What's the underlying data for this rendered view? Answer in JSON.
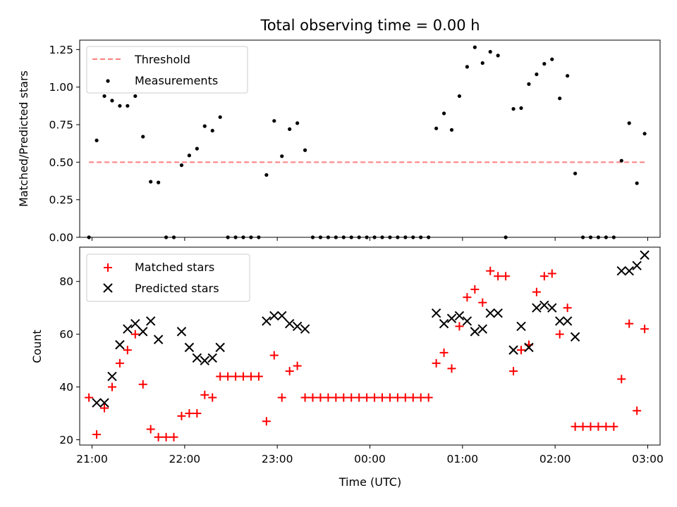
{
  "chart_data": [
    {
      "type": "scatter",
      "title": "Total observing time = 0.00 h",
      "ylabel": "Matched/Predicted stars",
      "xlim": [
        "20:52",
        "03:08"
      ],
      "ylim": [
        0,
        1.3125
      ],
      "yticks": [
        "0.00",
        "0.25",
        "0.50",
        "0.75",
        "1.00",
        "1.25"
      ],
      "threshold": {
        "name": "Threshold",
        "value": 0.5,
        "x_range": [
          "20:58",
          "02:58"
        ],
        "color": "#ff7f7f",
        "style": "dashed"
      },
      "legend": [
        "Threshold",
        "Measurements"
      ],
      "legend_position": "upper left",
      "series": [
        {
          "name": "Measurements",
          "color": "#000000",
          "x": [
            "20:58",
            "21:03",
            "21:08",
            "21:13",
            "21:18",
            "21:23",
            "21:28",
            "21:33",
            "21:38",
            "21:43",
            "21:48",
            "21:53",
            "21:58",
            "22:03",
            "22:08",
            "22:13",
            "22:18",
            "22:23",
            "22:28",
            "22:33",
            "22:38",
            "22:43",
            "22:48",
            "22:53",
            "22:58",
            "23:03",
            "23:08",
            "23:13",
            "23:18",
            "23:23",
            "23:28",
            "23:33",
            "23:38",
            "23:43",
            "23:48",
            "23:53",
            "23:58",
            "00:03",
            "00:08",
            "00:13",
            "00:18",
            "00:23",
            "00:28",
            "00:33",
            "00:38",
            "00:43",
            "00:48",
            "00:53",
            "00:58",
            "01:03",
            "01:08",
            "01:13",
            "01:18",
            "01:23",
            "01:28",
            "01:33",
            "01:38",
            "01:43",
            "01:48",
            "01:53",
            "01:58",
            "02:03",
            "02:08",
            "02:13",
            "02:18",
            "02:23",
            "02:28",
            "02:33",
            "02:38",
            "02:43",
            "02:48",
            "02:53",
            "02:58"
          ],
          "y": [
            0.0,
            0.645,
            0.94,
            0.91,
            0.875,
            0.875,
            0.94,
            0.67,
            0.37,
            0.365,
            0.0,
            0.0,
            0.48,
            0.545,
            0.59,
            0.74,
            0.71,
            0.8,
            0.0,
            0.0,
            0.0,
            0.0,
            0.0,
            0.415,
            0.775,
            0.54,
            0.72,
            0.76,
            0.58,
            0.0,
            0.0,
            0.0,
            0.0,
            0.0,
            0.0,
            0.0,
            0.0,
            0.0,
            0.0,
            0.0,
            0.0,
            0.0,
            0.0,
            0.0,
            0.0,
            0.725,
            0.825,
            0.715,
            0.94,
            1.135,
            1.265,
            1.16,
            1.235,
            1.21,
            0.0,
            0.855,
            0.86,
            1.02,
            1.085,
            1.155,
            1.185,
            0.925,
            1.075,
            0.425,
            0.0,
            0.0,
            0.0,
            0.0,
            0.0,
            0.51,
            0.76,
            0.36,
            0.69
          ]
        }
      ]
    },
    {
      "type": "scatter",
      "xlabel": "Time (UTC)",
      "ylabel": "Count",
      "xlim": [
        "20:52",
        "03:08"
      ],
      "ylim": [
        18,
        93
      ],
      "xticks": [
        "21:00",
        "22:00",
        "23:00",
        "00:00",
        "01:00",
        "02:00",
        "03:00"
      ],
      "yticks": [
        "20",
        "40",
        "60",
        "80"
      ],
      "legend": [
        "Matched stars",
        "Predicted stars"
      ],
      "legend_position": "upper left",
      "series": [
        {
          "name": "Matched stars",
          "color": "#ff0000",
          "marker": "+",
          "x": [
            "20:58",
            "21:03",
            "21:08",
            "21:13",
            "21:18",
            "21:23",
            "21:28",
            "21:33",
            "21:38",
            "21:43",
            "21:48",
            "21:53",
            "21:58",
            "22:03",
            "22:08",
            "22:13",
            "22:18",
            "22:23",
            "22:28",
            "22:33",
            "22:38",
            "22:43",
            "22:48",
            "22:53",
            "22:58",
            "23:03",
            "23:08",
            "23:13",
            "23:18",
            "23:23",
            "23:28",
            "23:33",
            "23:38",
            "23:43",
            "23:48",
            "23:53",
            "23:58",
            "00:03",
            "00:08",
            "00:13",
            "00:18",
            "00:23",
            "00:28",
            "00:33",
            "00:38",
            "00:43",
            "00:48",
            "00:53",
            "00:58",
            "01:03",
            "01:08",
            "01:13",
            "01:18",
            "01:23",
            "01:28",
            "01:33",
            "01:38",
            "01:43",
            "01:48",
            "01:53",
            "01:58",
            "02:03",
            "02:08",
            "02:13",
            "02:18",
            "02:23",
            "02:28",
            "02:33",
            "02:38",
            "02:43",
            "02:48",
            "02:53",
            "02:58"
          ],
          "y": [
            36,
            22,
            32,
            40,
            49,
            54,
            60,
            41,
            24,
            21,
            21,
            21,
            29,
            30,
            30,
            37,
            36,
            44,
            44,
            44,
            44,
            44,
            44,
            27,
            52,
            36,
            46,
            48,
            36,
            36,
            36,
            36,
            36,
            36,
            36,
            36,
            36,
            36,
            36,
            36,
            36,
            36,
            36,
            36,
            36,
            49,
            53,
            47,
            63,
            74,
            77,
            72,
            84,
            82,
            82,
            46,
            54,
            56,
            76,
            82,
            83,
            60,
            70,
            25,
            25,
            25,
            25,
            25,
            25,
            43,
            64,
            31,
            62
          ]
        },
        {
          "name": "Predicted stars",
          "color": "#000000",
          "marker": "x",
          "x": [
            "21:03",
            "21:08",
            "21:13",
            "21:18",
            "21:23",
            "21:28",
            "21:33",
            "21:38",
            "21:43",
            "21:58",
            "22:03",
            "22:08",
            "22:13",
            "22:18",
            "22:23",
            "22:53",
            "22:58",
            "23:03",
            "23:08",
            "23:13",
            "23:18",
            "00:43",
            "00:48",
            "00:53",
            "00:58",
            "01:03",
            "01:08",
            "01:13",
            "01:18",
            "01:23",
            "01:33",
            "01:38",
            "01:43",
            "01:48",
            "01:53",
            "01:58",
            "02:03",
            "02:08",
            "02:13",
            "02:43",
            "02:48",
            "02:53",
            "02:58"
          ],
          "y": [
            34,
            34,
            44,
            56,
            62,
            64,
            61,
            65,
            58,
            61,
            55,
            51,
            50,
            51,
            55,
            65,
            67,
            67,
            64,
            63,
            62,
            68,
            64,
            66,
            67,
            65,
            61,
            62,
            68,
            68,
            54,
            63,
            55,
            70,
            71,
            70,
            65,
            65,
            59,
            84,
            84,
            86,
            90
          ]
        }
      ]
    }
  ]
}
